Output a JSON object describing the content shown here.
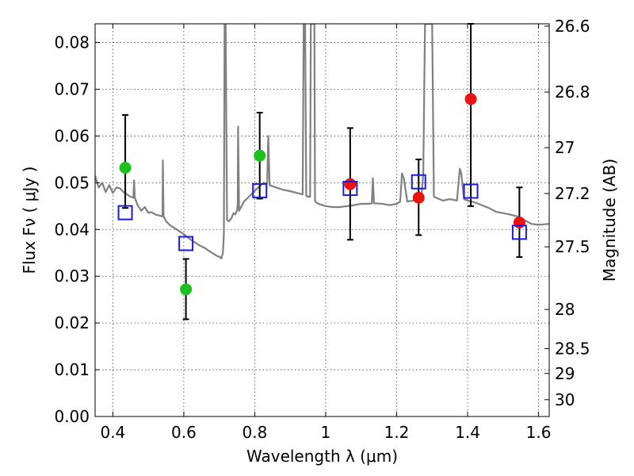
{
  "chart_data": {
    "type": "scatter",
    "xlabel": "Wavelength  λ (μm)",
    "ylabel": "Flux  Fν  ( μJy )",
    "y2label": "Magnitude (AB)",
    "xlim": [
      0.35,
      1.63
    ],
    "ylim": [
      0.0,
      0.084
    ],
    "grid": true,
    "x_ticks": [
      {
        "value": 0.4,
        "label": "0.4"
      },
      {
        "value": 0.6,
        "label": "0.6"
      },
      {
        "value": 0.8,
        "label": "0.8"
      },
      {
        "value": 1.0,
        "label": "1"
      },
      {
        "value": 1.2,
        "label": "1.2"
      },
      {
        "value": 1.4,
        "label": "1.4"
      },
      {
        "value": 1.6,
        "label": "1.6"
      }
    ],
    "y_ticks": [
      {
        "value": 0.0,
        "label": "0.00"
      },
      {
        "value": 0.01,
        "label": "0.01"
      },
      {
        "value": 0.02,
        "label": "0.02"
      },
      {
        "value": 0.03,
        "label": "0.03"
      },
      {
        "value": 0.04,
        "label": "0.04"
      },
      {
        "value": 0.05,
        "label": "0.05"
      },
      {
        "value": 0.06,
        "label": "0.06"
      },
      {
        "value": 0.07,
        "label": "0.07"
      },
      {
        "value": 0.08,
        "label": "0.08"
      }
    ],
    "y2_ticks": [
      {
        "flux": 0.0835,
        "label": "26.6"
      },
      {
        "flux": 0.0694,
        "label": "26.8"
      },
      {
        "flux": 0.0575,
        "label": "27"
      },
      {
        "flux": 0.0477,
        "label": "27.2"
      },
      {
        "flux": 0.0363,
        "label": "27.5"
      },
      {
        "flux": 0.0229,
        "label": "28"
      },
      {
        "flux": 0.0145,
        "label": "28.5"
      },
      {
        "flux": 0.0092,
        "label": "29"
      },
      {
        "flux": 0.0036,
        "label": "30"
      }
    ],
    "series": [
      {
        "marker": "circle",
        "color": "#1dbf1d",
        "points": [
          {
            "x": 0.435,
            "y": 0.0532,
            "ylo": 0.0446,
            "yhi": 0.0645
          },
          {
            "x": 0.606,
            "y": 0.0272,
            "ylo": 0.0208,
            "yhi": 0.0337
          },
          {
            "x": 0.814,
            "y": 0.0558,
            "ylo": 0.0466,
            "yhi": 0.065
          }
        ]
      },
      {
        "marker": "circle",
        "color": "#ee1111",
        "points": [
          {
            "x": 1.069,
            "y": 0.0497,
            "ylo": 0.0378,
            "yhi": 0.0617
          },
          {
            "x": 1.262,
            "y": 0.0468,
            "ylo": 0.0388,
            "yhi": 0.055
          },
          {
            "x": 1.409,
            "y": 0.0679,
            "ylo": 0.045,
            "yhi": 0.084
          },
          {
            "x": 1.546,
            "y": 0.0415,
            "ylo": 0.0341,
            "yhi": 0.049
          }
        ]
      },
      {
        "marker": "square",
        "color": "#1a1adb",
        "points": [
          {
            "x": 0.435,
            "y": 0.0436
          },
          {
            "x": 0.606,
            "y": 0.037
          },
          {
            "x": 0.814,
            "y": 0.0483
          },
          {
            "x": 1.069,
            "y": 0.0488
          },
          {
            "x": 1.262,
            "y": 0.0502
          },
          {
            "x": 1.409,
            "y": 0.0482
          },
          {
            "x": 1.546,
            "y": 0.0394
          }
        ]
      }
    ],
    "model_spectrum": {
      "color": "#808080",
      "points": [
        [
          0.35,
          0.0515
        ],
        [
          0.36,
          0.049
        ],
        [
          0.37,
          0.05
        ],
        [
          0.38,
          0.048
        ],
        [
          0.39,
          0.0495
        ],
        [
          0.4,
          0.0478
        ],
        [
          0.41,
          0.049
        ],
        [
          0.42,
          0.0488
        ],
        [
          0.43,
          0.048
        ],
        [
          0.44,
          0.0475
        ],
        [
          0.45,
          0.047
        ],
        [
          0.458,
          0.0468
        ],
        [
          0.46,
          0.0505
        ],
        [
          0.462,
          0.0468
        ],
        [
          0.47,
          0.0452
        ],
        [
          0.48,
          0.044
        ],
        [
          0.49,
          0.0448
        ],
        [
          0.5,
          0.0436
        ],
        [
          0.51,
          0.0437
        ],
        [
          0.52,
          0.0432
        ],
        [
          0.53,
          0.043
        ],
        [
          0.54,
          0.0428
        ],
        [
          0.541,
          0.0548
        ],
        [
          0.543,
          0.0428
        ],
        [
          0.55,
          0.0418
        ],
        [
          0.56,
          0.041
        ],
        [
          0.58,
          0.04
        ],
        [
          0.6,
          0.039
        ],
        [
          0.62,
          0.0378
        ],
        [
          0.64,
          0.0368
        ],
        [
          0.66,
          0.036
        ],
        [
          0.68,
          0.035
        ],
        [
          0.695,
          0.0343
        ],
        [
          0.7,
          0.0342
        ],
        [
          0.706,
          0.0338
        ],
        [
          0.71,
          0.035
        ],
        [
          0.713,
          0.039
        ],
        [
          0.715,
          0.084
        ],
        [
          0.718,
          0.084
        ],
        [
          0.722,
          0.042
        ],
        [
          0.728,
          0.0418
        ],
        [
          0.735,
          0.0425
        ],
        [
          0.74,
          0.0435
        ],
        [
          0.745,
          0.0432
        ],
        [
          0.75,
          0.044
        ],
        [
          0.752,
          0.0455
        ],
        [
          0.753,
          0.062
        ],
        [
          0.756,
          0.044
        ],
        [
          0.77,
          0.046
        ],
        [
          0.79,
          0.0475
        ],
        [
          0.81,
          0.049
        ],
        [
          0.825,
          0.05
        ],
        [
          0.835,
          0.0498
        ],
        [
          0.838,
          0.06
        ],
        [
          0.842,
          0.0495
        ],
        [
          0.86,
          0.049
        ],
        [
          0.88,
          0.0485
        ],
        [
          0.9,
          0.0482
        ],
        [
          0.92,
          0.0478
        ],
        [
          0.935,
          0.0475
        ],
        [
          0.938,
          0.084
        ],
        [
          0.942,
          0.084
        ],
        [
          0.945,
          0.0472
        ],
        [
          0.95,
          0.047
        ],
        [
          0.956,
          0.047
        ],
        [
          0.958,
          0.084
        ],
        [
          0.968,
          0.084
        ],
        [
          0.97,
          0.046
        ],
        [
          0.98,
          0.0455
        ],
        [
          1.0,
          0.045
        ],
        [
          1.02,
          0.0448
        ],
        [
          1.04,
          0.0448
        ],
        [
          1.06,
          0.045
        ],
        [
          1.08,
          0.0452
        ],
        [
          1.1,
          0.0455
        ],
        [
          1.12,
          0.0455
        ],
        [
          1.13,
          0.0456
        ],
        [
          1.133,
          0.051
        ],
        [
          1.136,
          0.0456
        ],
        [
          1.16,
          0.0455
        ],
        [
          1.18,
          0.0452
        ],
        [
          1.2,
          0.0455
        ],
        [
          1.21,
          0.046
        ],
        [
          1.215,
          0.052
        ],
        [
          1.22,
          0.051
        ],
        [
          1.23,
          0.046
        ],
        [
          1.25,
          0.0462
        ],
        [
          1.26,
          0.0465
        ],
        [
          1.27,
          0.047
        ],
        [
          1.275,
          0.052
        ],
        [
          1.28,
          0.084
        ],
        [
          1.3,
          0.084
        ],
        [
          1.305,
          0.047
        ],
        [
          1.33,
          0.0462
        ],
        [
          1.35,
          0.0465
        ],
        [
          1.37,
          0.0462
        ],
        [
          1.378,
          0.053
        ],
        [
          1.382,
          0.052
        ],
        [
          1.39,
          0.0465
        ],
        [
          1.4,
          0.0462
        ],
        [
          1.42,
          0.0458
        ],
        [
          1.44,
          0.0452
        ],
        [
          1.46,
          0.0446
        ],
        [
          1.48,
          0.0438
        ],
        [
          1.5,
          0.0435
        ],
        [
          1.52,
          0.0432
        ],
        [
          1.54,
          0.0428
        ],
        [
          1.56,
          0.042
        ],
        [
          1.58,
          0.0412
        ],
        [
          1.6,
          0.041
        ],
        [
          1.63,
          0.0412
        ]
      ]
    }
  }
}
